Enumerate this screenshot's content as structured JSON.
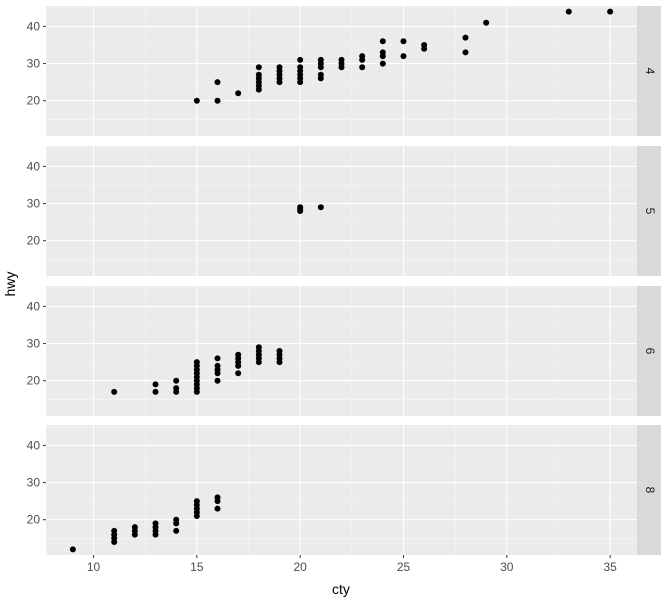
{
  "chart_data": {
    "type": "scatter",
    "facet": "rows",
    "xlabel": "cty",
    "ylabel": "hwy",
    "xlim": [
      7.7,
      36.3
    ],
    "ylim": [
      10.5,
      45.5
    ],
    "x_ticks": [
      10,
      15,
      20,
      25,
      30,
      35
    ],
    "y_ticks": [
      20,
      30,
      40
    ],
    "grid": true,
    "background_color": "#EBEBEB",
    "strip_color": "#D9D9D9",
    "point_color": "#000000",
    "panels": [
      {
        "strip": "4",
        "points": [
          [
            15,
            20
          ],
          [
            16,
            20
          ],
          [
            16,
            25
          ],
          [
            17,
            22
          ],
          [
            18,
            23
          ],
          [
            18,
            24
          ],
          [
            18,
            25
          ],
          [
            18,
            26
          ],
          [
            18,
            27
          ],
          [
            18,
            29
          ],
          [
            19,
            25
          ],
          [
            19,
            26
          ],
          [
            19,
            27
          ],
          [
            19,
            28
          ],
          [
            19,
            29
          ],
          [
            20,
            25
          ],
          [
            20,
            26
          ],
          [
            20,
            27
          ],
          [
            20,
            28
          ],
          [
            20,
            29
          ],
          [
            20,
            31
          ],
          [
            21,
            26
          ],
          [
            21,
            27
          ],
          [
            21,
            29
          ],
          [
            21,
            30
          ],
          [
            21,
            31
          ],
          [
            22,
            29
          ],
          [
            22,
            30
          ],
          [
            22,
            31
          ],
          [
            23,
            29
          ],
          [
            23,
            31
          ],
          [
            23,
            32
          ],
          [
            24,
            30
          ],
          [
            24,
            32
          ],
          [
            24,
            33
          ],
          [
            24,
            36
          ],
          [
            25,
            32
          ],
          [
            25,
            36
          ],
          [
            26,
            34
          ],
          [
            26,
            35
          ],
          [
            28,
            33
          ],
          [
            28,
            37
          ],
          [
            29,
            41
          ],
          [
            33,
            44
          ],
          [
            35,
            44
          ]
        ]
      },
      {
        "strip": "5",
        "points": [
          [
            20,
            28
          ],
          [
            20,
            28.5
          ],
          [
            20,
            29
          ],
          [
            21,
            29
          ]
        ]
      },
      {
        "strip": "6",
        "points": [
          [
            11,
            17
          ],
          [
            13,
            17
          ],
          [
            13,
            19
          ],
          [
            14,
            17
          ],
          [
            14,
            18
          ],
          [
            14,
            20
          ],
          [
            15,
            17
          ],
          [
            15,
            18
          ],
          [
            15,
            19
          ],
          [
            15,
            20
          ],
          [
            15,
            21
          ],
          [
            15,
            22
          ],
          [
            15,
            23
          ],
          [
            15,
            24
          ],
          [
            15,
            25
          ],
          [
            16,
            20
          ],
          [
            16,
            22
          ],
          [
            16,
            23
          ],
          [
            16,
            24
          ],
          [
            16,
            26
          ],
          [
            17,
            22
          ],
          [
            17,
            24
          ],
          [
            17,
            25
          ],
          [
            17,
            26
          ],
          [
            17,
            27
          ],
          [
            18,
            25
          ],
          [
            18,
            26
          ],
          [
            18,
            27
          ],
          [
            18,
            28
          ],
          [
            18,
            29
          ],
          [
            19,
            25
          ],
          [
            19,
            26
          ],
          [
            19,
            27
          ],
          [
            19,
            28
          ]
        ]
      },
      {
        "strip": "8",
        "points": [
          [
            9,
            12
          ],
          [
            11,
            14
          ],
          [
            11,
            15
          ],
          [
            11,
            16
          ],
          [
            11,
            17
          ],
          [
            12,
            16
          ],
          [
            12,
            17
          ],
          [
            12,
            18
          ],
          [
            13,
            16
          ],
          [
            13,
            17
          ],
          [
            13,
            18
          ],
          [
            13,
            19
          ],
          [
            14,
            17
          ],
          [
            14,
            19
          ],
          [
            14,
            20
          ],
          [
            15,
            21
          ],
          [
            15,
            22
          ],
          [
            15,
            23
          ],
          [
            15,
            24
          ],
          [
            15,
            25
          ],
          [
            16,
            23
          ],
          [
            16,
            25
          ],
          [
            16,
            26
          ]
        ]
      }
    ]
  }
}
